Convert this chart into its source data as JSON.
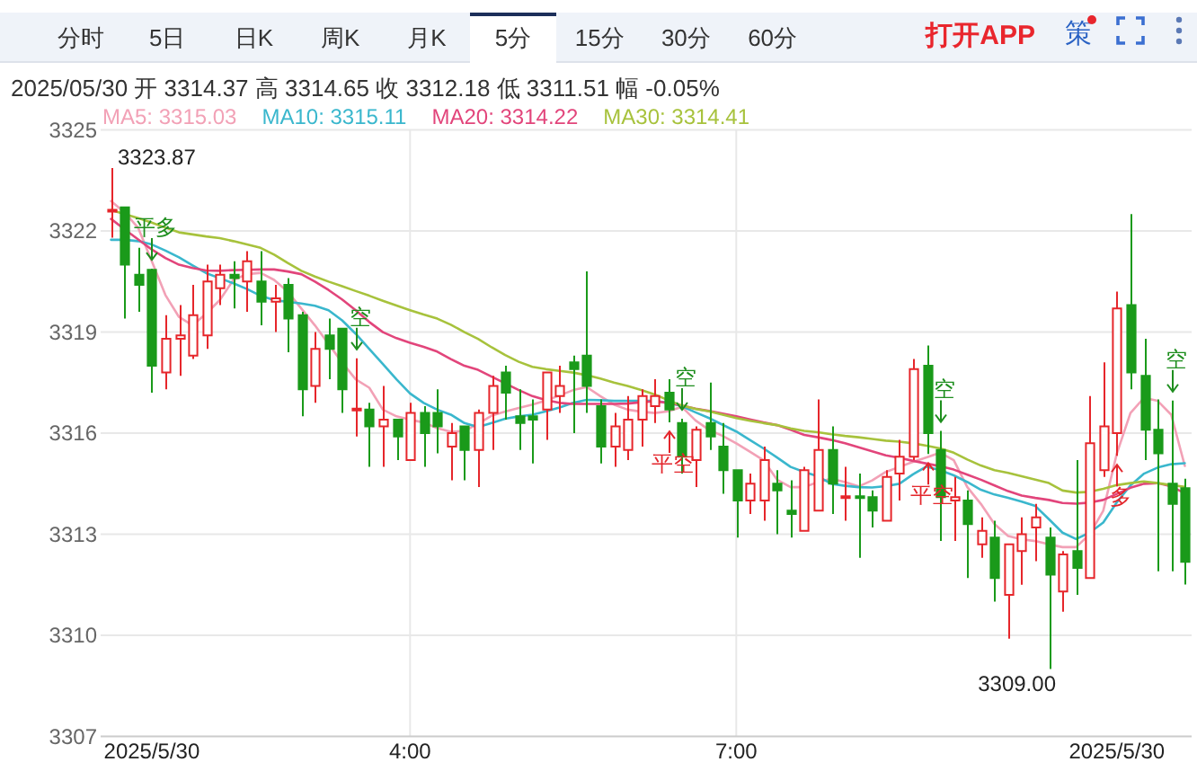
{
  "chart_data": {
    "type": "candlestick",
    "subtitle": "2025/05/30 开 3314.37 高 3314.65 收 3312.18 低 3311.51 幅 -0.05%",
    "categories": [
      null,
      null,
      null,
      "2025/5/30",
      null,
      null,
      null,
      null,
      null,
      null,
      null,
      null,
      null,
      null,
      null,
      null,
      null,
      null,
      null,
      null,
      null,
      null,
      "4:00",
      null,
      null,
      null,
      null,
      null,
      null,
      null,
      null,
      null,
      null,
      null,
      null,
      null,
      null,
      null,
      null,
      null,
      null,
      null,
      null,
      null,
      null,
      null,
      "7:00",
      null,
      null,
      null,
      null,
      null,
      null,
      null,
      null,
      null,
      null,
      null,
      null,
      null,
      null,
      null,
      null,
      null,
      null,
      null,
      null,
      null,
      null,
      null,
      null,
      null,
      null,
      null,
      "2025/5/30",
      null,
      null,
      null,
      null,
      null
    ],
    "ohlc": [
      [
        3322.6,
        3323.87,
        3321.8,
        3322.6
      ],
      [
        3322.7,
        3322.7,
        3319.4,
        3321.0
      ],
      [
        3320.7,
        3321.5,
        3319.6,
        3320.4
      ],
      [
        3320.85,
        3320.88,
        3317.2,
        3318.0
      ],
      [
        3317.8,
        3319.5,
        3317.3,
        3318.8
      ],
      [
        3318.8,
        3319.8,
        3317.7,
        3318.9
      ],
      [
        3318.3,
        3320.4,
        3318.2,
        3319.5
      ],
      [
        3318.9,
        3321.0,
        3318.5,
        3320.5
      ],
      [
        3320.3,
        3321.0,
        3319.8,
        3320.7
      ],
      [
        3320.7,
        3321.1,
        3319.7,
        3320.6
      ],
      [
        3320.5,
        3321.4,
        3319.6,
        3321.1
      ],
      [
        3320.5,
        3321.4,
        3319.2,
        3319.9
      ],
      [
        3319.9,
        3320.4,
        3319.0,
        3320.0
      ],
      [
        3320.4,
        3320.6,
        3318.4,
        3319.4
      ],
      [
        3319.5,
        3319.6,
        3316.5,
        3317.3
      ],
      [
        3317.4,
        3319.0,
        3316.9,
        3318.5
      ],
      [
        3318.9,
        3319.4,
        3317.6,
        3318.5
      ],
      [
        3319.1,
        3319.1,
        3316.6,
        3317.3
      ],
      [
        3316.7,
        3318.22,
        3315.9,
        3316.7
      ],
      [
        3316.7,
        3316.9,
        3315.0,
        3316.2
      ],
      [
        3316.2,
        3317.4,
        3315.0,
        3316.4
      ],
      [
        3316.4,
        3316.4,
        3315.2,
        3315.9
      ],
      [
        3315.2,
        3316.9,
        3315.2,
        3316.6
      ],
      [
        3316.6,
        3316.8,
        3315.0,
        3316.0
      ],
      [
        3316.6,
        3317.3,
        3315.4,
        3316.2
      ],
      [
        3315.6,
        3316.3,
        3314.6,
        3316.0
      ],
      [
        3316.2,
        3316.2,
        3314.6,
        3315.5
      ],
      [
        3315.5,
        3316.7,
        3314.4,
        3316.6
      ],
      [
        3316.6,
        3317.7,
        3315.5,
        3317.4
      ],
      [
        3317.8,
        3318.0,
        3316.4,
        3317.2
      ],
      [
        3316.5,
        3317.3,
        3315.5,
        3316.3
      ],
      [
        3316.5,
        3317.0,
        3315.1,
        3316.4
      ],
      [
        3316.7,
        3317.8,
        3315.8,
        3317.8
      ],
      [
        3317.1,
        3318.0,
        3316.6,
        3317.4
      ],
      [
        3318.1,
        3318.3,
        3316.0,
        3317.9
      ],
      [
        3318.3,
        3320.8,
        3316.6,
        3317.4
      ],
      [
        3316.8,
        3317.0,
        3315.1,
        3315.6
      ],
      [
        3315.6,
        3316.6,
        3315.0,
        3316.2
      ],
      [
        3315.5,
        3317.1,
        3315.2,
        3316.4
      ],
      [
        3316.4,
        3317.3,
        3315.6,
        3317.1
      ],
      [
        3316.8,
        3317.6,
        3316.3,
        3317.1
      ],
      [
        3317.2,
        3317.6,
        3316.32,
        3316.7
      ],
      [
        3316.3,
        3316.43,
        3314.8,
        3315.3
      ],
      [
        3315.2,
        3316.2,
        3314.4,
        3316.1
      ],
      [
        3316.3,
        3317.5,
        3315.5,
        3315.9
      ],
      [
        3315.6,
        3316.3,
        3314.2,
        3314.9
      ],
      [
        3314.9,
        3314.9,
        3312.9,
        3314.0
      ],
      [
        3314.0,
        3314.8,
        3313.6,
        3314.5
      ],
      [
        3314.0,
        3315.6,
        3313.4,
        3315.2
      ],
      [
        3314.5,
        3314.9,
        3313.0,
        3314.3
      ],
      [
        3313.7,
        3314.6,
        3312.9,
        3313.6
      ],
      [
        3313.1,
        3315.0,
        3313.1,
        3314.9
      ],
      [
        3313.7,
        3317.0,
        3313.7,
        3315.5
      ],
      [
        3315.5,
        3316.2,
        3313.6,
        3314.5
      ],
      [
        3314.1,
        3315.0,
        3313.4,
        3314.1
      ],
      [
        3314.1,
        3314.8,
        3312.3,
        3314.1
      ],
      [
        3314.1,
        3314.3,
        3313.2,
        3313.7
      ],
      [
        3313.4,
        3314.9,
        3313.4,
        3314.7
      ],
      [
        3314.8,
        3315.8,
        3314.0,
        3315.3
      ],
      [
        3315.3,
        3318.2,
        3315.2,
        3317.9
      ],
      [
        3318.0,
        3318.6,
        3315.38,
        3316.0
      ],
      [
        3315.5,
        3316.07,
        3312.8,
        3314.1
      ],
      [
        3314.0,
        3314.7,
        3312.8,
        3314.1
      ],
      [
        3314.0,
        3314.3,
        3311.7,
        3313.3
      ],
      [
        3312.7,
        3313.5,
        3312.3,
        3313.1
      ],
      [
        3312.9,
        3313.4,
        3311.0,
        3311.7
      ],
      [
        3311.2,
        3312.7,
        3309.9,
        3312.7
      ],
      [
        3312.5,
        3313.5,
        3311.5,
        3313.0
      ],
      [
        3313.2,
        3313.9,
        3312.2,
        3313.5
      ],
      [
        3312.9,
        3313.2,
        3309.0,
        3311.8
      ],
      [
        3311.3,
        3312.5,
        3310.7,
        3312.4
      ],
      [
        3312.5,
        3315.2,
        3311.2,
        3312.0
      ],
      [
        3311.7,
        3317.1,
        3311.7,
        3315.7
      ],
      [
        3314.9,
        3318.1,
        3314.7,
        3316.2
      ],
      [
        3316.0,
        3320.2,
        3315.33,
        3319.7
      ],
      [
        3319.8,
        3322.5,
        3317.3,
        3317.8
      ],
      [
        3317.7,
        3318.8,
        3315.2,
        3316.1
      ],
      [
        3316.1,
        3317.0,
        3311.9,
        3315.4
      ],
      [
        3314.5,
        3316.97,
        3311.9,
        3313.9
      ],
      [
        3314.37,
        3314.65,
        3311.51,
        3312.18
      ]
    ],
    "colors": [
      "#e6262b",
      "#1a9a1a",
      "#1a9a1a",
      "#1a9a1a",
      "#e6262b",
      "#e6262b",
      "#e6262b",
      "#e6262b",
      "#e6262b",
      "#1a9a1a",
      "#e6262b",
      "#1a9a1a",
      "#e6262b",
      "#1a9a1a",
      "#1a9a1a",
      "#e6262b",
      "#1a9a1a",
      "#1a9a1a",
      "#e6262b",
      "#1a9a1a",
      "#e6262b",
      "#1a9a1a",
      "#e6262b",
      "#1a9a1a",
      "#1a9a1a",
      "#e6262b",
      "#1a9a1a",
      "#e6262b",
      "#e6262b",
      "#1a9a1a",
      "#1a9a1a",
      "#1a9a1a",
      "#e6262b",
      "#e6262b",
      "#1a9a1a",
      "#1a9a1a",
      "#1a9a1a",
      "#e6262b",
      "#e6262b",
      "#e6262b",
      "#e6262b",
      "#1a9a1a",
      "#1a9a1a",
      "#e6262b",
      "#1a9a1a",
      "#1a9a1a",
      "#1a9a1a",
      "#e6262b",
      "#e6262b",
      "#1a9a1a",
      "#1a9a1a",
      "#e6262b",
      "#e6262b",
      "#1a9a1a",
      "#e6262b",
      "#1a9a1a",
      "#1a9a1a",
      "#e6262b",
      "#e6262b",
      "#e6262b",
      "#1a9a1a",
      "#1a9a1a",
      "#e6262b",
      "#1a9a1a",
      "#e6262b",
      "#1a9a1a",
      "#e6262b",
      "#e6262b",
      "#e6262b",
      "#1a9a1a",
      "#e6262b",
      "#1a9a1a",
      "#e6262b",
      "#e6262b",
      "#e6262b",
      "#1a9a1a",
      "#1a9a1a",
      "#1a9a1a",
      "#1a9a1a",
      "#1a9a1a"
    ],
    "series": [
      {
        "type": "line",
        "name": "MA5: 3315.03",
        "color": "#f2a1b6",
        "values": [
          3322.89,
          3322.55,
          3322.09,
          3321.1,
          3320.1,
          3319.45,
          3319.2,
          3319.55,
          3319.95,
          3320.55,
          3320.72,
          3320.76,
          3320.55,
          3320.2,
          3319.7,
          3319.2,
          3318.65,
          3318.1,
          3317.6,
          3317.35,
          3316.7,
          3316.5,
          3316.4,
          3316.32,
          3316.15,
          3316.04,
          3316.07,
          3316.28,
          3316.52,
          3316.64,
          3316.75,
          3316.85,
          3316.97,
          3317.12,
          3317.28,
          3317.37,
          3317.1,
          3316.85,
          3316.7,
          3316.64,
          3316.6,
          3316.65,
          3316.78,
          3316.38,
          3316.1,
          3315.92,
          3315.7,
          3315.45,
          3315.2,
          3314.62,
          3314.4,
          3314.4,
          3314.55,
          3314.65,
          3314.55,
          3314.42,
          3314.6,
          3314.85,
          3315.0,
          3315.15,
          3315.28,
          3315.42,
          3315.2,
          3314.4,
          3313.9,
          3313.3,
          3312.95,
          3312.85,
          3312.8,
          3312.7,
          3312.62,
          3312.62,
          3313.0,
          3313.7,
          3315.4,
          3316.6,
          3317.05,
          3316.96,
          3316.55,
          3315.03
        ]
      },
      {
        "type": "line",
        "name": "MA10: 3315.11",
        "color": "#3ab7cd",
        "values": [
          3321.74,
          3321.74,
          3321.7,
          3321.6,
          3321.42,
          3321.22,
          3320.98,
          3320.75,
          3320.6,
          3320.45,
          3320.28,
          3320.08,
          3319.95,
          3319.9,
          3319.85,
          3319.78,
          3319.65,
          3319.35,
          3318.95,
          3318.5,
          3318.05,
          3317.6,
          3317.18,
          3316.9,
          3316.7,
          3316.55,
          3316.3,
          3316.18,
          3316.3,
          3316.43,
          3316.5,
          3316.55,
          3316.65,
          3316.76,
          3316.9,
          3316.99,
          3316.98,
          3316.96,
          3316.96,
          3316.96,
          3316.96,
          3316.9,
          3316.8,
          3316.62,
          3316.45,
          3316.25,
          3316.05,
          3315.8,
          3315.55,
          3315.28,
          3315.0,
          3314.85,
          3314.72,
          3314.5,
          3314.44,
          3314.4,
          3314.39,
          3314.43,
          3314.5,
          3314.78,
          3315.01,
          3314.9,
          3314.75,
          3314.55,
          3314.32,
          3314.18,
          3314.08,
          3313.97,
          3313.84,
          3313.45,
          3313.05,
          3312.86,
          3313.05,
          3313.35,
          3313.95,
          3314.45,
          3314.8,
          3314.98,
          3315.08,
          3315.11
        ]
      },
      {
        "type": "line",
        "name": "MA20: 3314.22",
        "color": "#e2457b",
        "values": [
          3322.36,
          3322.05,
          3321.75,
          3321.45,
          3321.2,
          3321.0,
          3320.9,
          3320.83,
          3320.82,
          3320.84,
          3320.85,
          3320.86,
          3320.86,
          3320.8,
          3320.72,
          3320.5,
          3320.25,
          3319.97,
          3319.65,
          3319.3,
          3319.0,
          3318.82,
          3318.68,
          3318.56,
          3318.42,
          3318.2,
          3318.0,
          3317.88,
          3317.68,
          3317.48,
          3317.28,
          3317.1,
          3316.98,
          3316.9,
          3316.87,
          3316.87,
          3316.87,
          3316.87,
          3316.88,
          3316.92,
          3316.95,
          3316.9,
          3316.82,
          3316.73,
          3316.66,
          3316.58,
          3316.5,
          3316.41,
          3316.32,
          3316.24,
          3316.1,
          3315.95,
          3315.88,
          3315.8,
          3315.7,
          3315.58,
          3315.46,
          3315.34,
          3315.27,
          3315.18,
          3315.1,
          3315.02,
          3314.92,
          3314.77,
          3314.62,
          3314.45,
          3314.28,
          3314.15,
          3314.08,
          3314.02,
          3313.93,
          3313.91,
          3313.94,
          3314.02,
          3314.2,
          3314.38,
          3314.5,
          3314.52,
          3314.42,
          3314.22
        ]
      },
      {
        "type": "line",
        "name": "MA30: 3314.41",
        "color": "#a7c23c",
        "values": [
          3322.62,
          3322.5,
          3322.38,
          3322.25,
          3322.1,
          3321.96,
          3321.9,
          3321.84,
          3321.79,
          3321.7,
          3321.6,
          3321.5,
          3321.3,
          3321.05,
          3320.82,
          3320.65,
          3320.5,
          3320.36,
          3320.22,
          3320.08,
          3319.93,
          3319.79,
          3319.65,
          3319.52,
          3319.4,
          3319.22,
          3319.0,
          3318.8,
          3318.55,
          3318.32,
          3318.12,
          3317.97,
          3317.9,
          3317.85,
          3317.8,
          3317.72,
          3317.62,
          3317.5,
          3317.4,
          3317.28,
          3317.15,
          3316.98,
          3316.82,
          3316.72,
          3316.65,
          3316.55,
          3316.45,
          3316.37,
          3316.3,
          3316.24,
          3316.14,
          3316.07,
          3316.03,
          3315.97,
          3315.92,
          3315.88,
          3315.83,
          3315.78,
          3315.75,
          3315.7,
          3315.63,
          3315.55,
          3315.42,
          3315.22,
          3315.04,
          3314.9,
          3314.82,
          3314.72,
          3314.62,
          3314.52,
          3314.3,
          3314.24,
          3314.26,
          3314.35,
          3314.46,
          3314.52,
          3314.57,
          3314.52,
          3314.46,
          3314.41
        ]
      }
    ],
    "ylim": [
      3307,
      3325
    ],
    "yticks": [
      3307,
      3310,
      3313,
      3316,
      3319,
      3322,
      3325
    ],
    "grid": true,
    "legend": "top",
    "annotations": [
      "分时",
      "5日",
      "日K",
      "周K",
      "月K",
      "5分",
      "15分",
      "30分",
      "60分",
      "打开APP",
      "策",
      "3323.87",
      "平多",
      "空",
      "平空",
      "空",
      "平空",
      "空",
      "多",
      "3309.00",
      "空"
    ]
  }
}
